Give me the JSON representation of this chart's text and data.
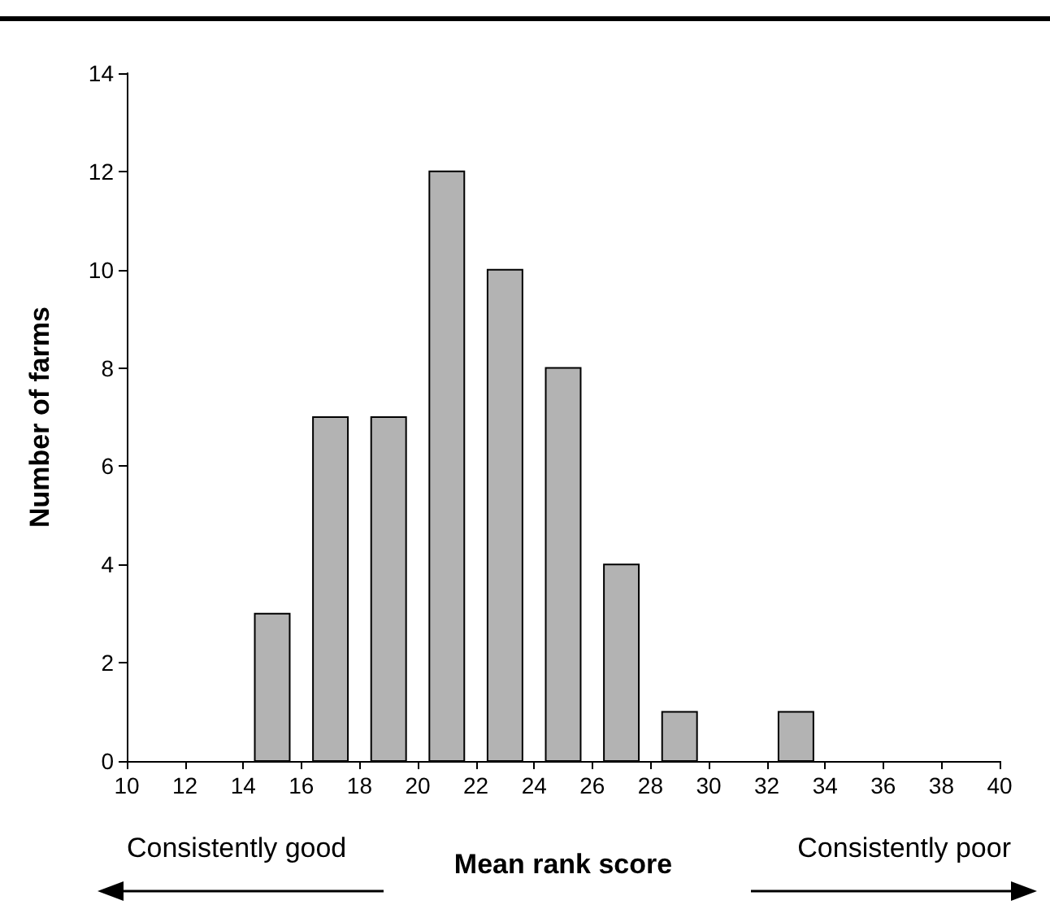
{
  "chart_data": {
    "type": "histogram",
    "xlabel": "Mean rank score",
    "ylabel": "Number of farms",
    "bins": [
      10,
      12,
      14,
      16,
      18,
      20,
      22,
      24,
      26,
      28,
      30,
      32,
      34,
      36,
      38,
      40
    ],
    "values": [
      0,
      0,
      3,
      7,
      7,
      12,
      10,
      8,
      4,
      1,
      0,
      1,
      0,
      0,
      0
    ],
    "color": "#b3b3b3",
    "grid": false,
    "xlim": [
      10,
      40
    ],
    "xticks": [
      10,
      12,
      14,
      16,
      18,
      20,
      22,
      24,
      26,
      28,
      30,
      32,
      34,
      36,
      38,
      40
    ],
    "ylim": [
      0,
      14
    ],
    "yticks": [
      0,
      2,
      4,
      6,
      8,
      10,
      12,
      14
    ],
    "annotations": [
      "Consistently good",
      "Consistently poor"
    ]
  }
}
